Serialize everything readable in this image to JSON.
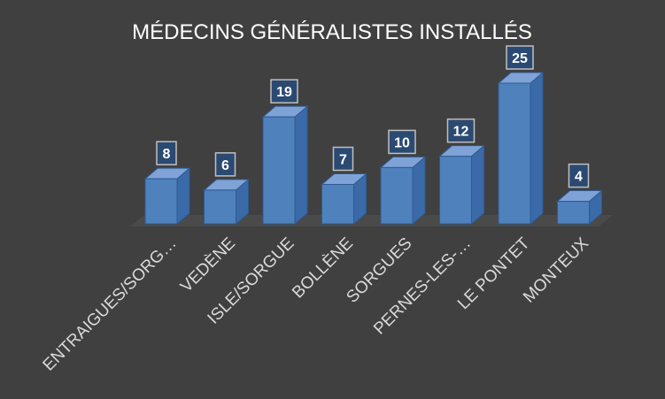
{
  "chart_data": {
    "type": "bar",
    "title": "MÉDECINS GÉNÉRALISTES INSTALLÉS",
    "categories": [
      "ENTRAIGUES/SORG…",
      "VEDÈNE",
      "ISLE/SORGUE",
      "BOLLÈNE",
      "SORGUES",
      "PERNES-LES-…",
      "LE PONTET",
      "MONTEUX"
    ],
    "values": [
      8,
      6,
      19,
      7,
      10,
      12,
      25,
      4
    ],
    "data_labels": [
      "8",
      "6",
      "19",
      "7",
      "10",
      "12",
      "25",
      "4"
    ],
    "ylim": [
      0,
      25
    ],
    "grid": false,
    "legend": "none",
    "colors": {
      "background": "#404040",
      "bar_front": "#4f81bd",
      "bar_side": "#3a6aa8",
      "bar_top": "#7fa3d6",
      "floor": "#4a4a4a",
      "label_box": "#2b4a72",
      "label_border": "#bfbfbf"
    }
  }
}
